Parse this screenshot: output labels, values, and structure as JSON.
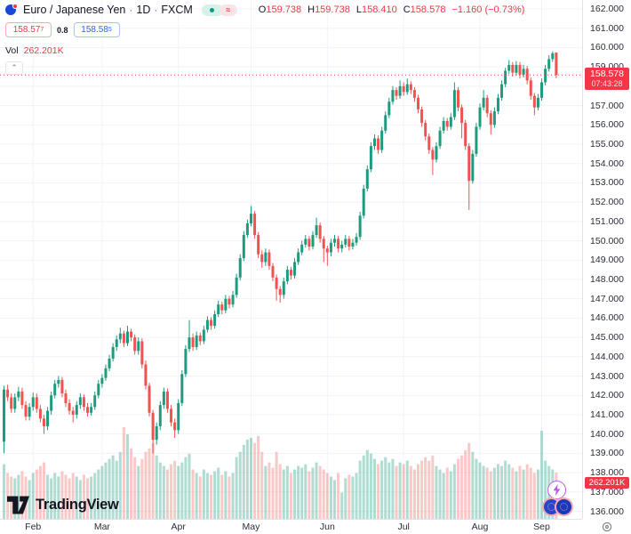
{
  "header": {
    "symbol": "Euro / Japanese Yen",
    "separator": "·",
    "interval": "1D",
    "exchange": "FXCM",
    "status_icons": [
      "market-open-dot-icon",
      "delayed-data-approx-icon"
    ],
    "status_approx_glyph": "≈",
    "ohlc": {
      "o_label": "O",
      "o": "159.738",
      "h_label": "H",
      "h": "159.738",
      "l_label": "L",
      "l": "158.410",
      "c_label": "C",
      "c": "158.578",
      "change": "−1.160 (−0.73%)"
    },
    "bid_main": "158.57",
    "bid_sup": "7",
    "spread": "0.8",
    "ask_main": "158.58",
    "ask_sup": "5",
    "vol_label": "Vol",
    "vol_value": "262.201K",
    "collapse_glyph": "⌃"
  },
  "axis": {
    "current_price": "158.578",
    "countdown": "07:43:28",
    "volume_label": "262.201K"
  },
  "footer": {
    "logo_text": "TradingView"
  },
  "colors": {
    "up": "#1e9b7e",
    "down": "#ef5350",
    "vol_up": "rgba(30,155,126,0.35)",
    "vol_down": "rgba(239,83,80,0.32)",
    "price_line": "#f23645",
    "grid": "#f0f3fa",
    "axis_text": "#2a2e39",
    "label_bg": "#f23645",
    "accent_blue": "#2962ff"
  },
  "chart_data": {
    "type": "candlestick",
    "title": "Euro / Japanese Yen · 1D · FXCM",
    "price_axis": {
      "min": 136,
      "max": 162,
      "step": 1,
      "format_decimals": 3
    },
    "last_price": 158.578,
    "months": [
      {
        "label": "Feb",
        "index": 8
      },
      {
        "label": "Mar",
        "index": 27
      },
      {
        "label": "Apr",
        "index": 48
      },
      {
        "label": "May",
        "index": 68
      },
      {
        "label": "Jun",
        "index": 89
      },
      {
        "label": "Jul",
        "index": 110
      },
      {
        "label": "Aug",
        "index": 131
      },
      {
        "label": "Sep",
        "index": 148
      }
    ],
    "candles": [
      [
        139.6,
        142.5,
        139.0,
        142.3
      ],
      [
        142.3,
        142.55,
        141.7,
        141.9
      ],
      [
        141.9,
        142.1,
        141.1,
        141.3
      ],
      [
        141.3,
        142.1,
        141.1,
        141.9
      ],
      [
        141.9,
        142.45,
        141.7,
        142.2
      ],
      [
        142.2,
        142.4,
        141.3,
        141.5
      ],
      [
        141.5,
        141.7,
        140.7,
        140.9
      ],
      [
        140.9,
        141.6,
        140.7,
        141.4
      ],
      [
        141.4,
        142.15,
        141.2,
        141.9
      ],
      [
        141.9,
        142.1,
        141.1,
        141.3
      ],
      [
        141.3,
        141.5,
        140.6,
        140.8
      ],
      [
        140.8,
        141.0,
        140.0,
        140.4
      ],
      [
        140.4,
        141.4,
        140.2,
        141.2
      ],
      [
        141.2,
        142.2,
        141.0,
        142.0
      ],
      [
        142.0,
        142.8,
        141.85,
        142.6
      ],
      [
        142.6,
        143.0,
        142.4,
        142.8
      ],
      [
        142.8,
        142.95,
        141.9,
        142.1
      ],
      [
        142.1,
        142.3,
        141.4,
        141.6
      ],
      [
        141.6,
        141.8,
        141.0,
        141.2
      ],
      [
        141.2,
        141.4,
        140.6,
        141.0
      ],
      [
        141.0,
        141.7,
        140.8,
        141.5
      ],
      [
        141.5,
        142.1,
        141.3,
        141.9
      ],
      [
        141.9,
        142.05,
        141.2,
        141.4
      ],
      [
        141.4,
        141.6,
        140.9,
        141.1
      ],
      [
        141.1,
        141.6,
        140.95,
        141.4
      ],
      [
        141.4,
        142.2,
        141.25,
        142.0
      ],
      [
        142.0,
        142.8,
        141.85,
        142.6
      ],
      [
        142.6,
        143.1,
        142.4,
        142.9
      ],
      [
        142.9,
        143.6,
        142.75,
        143.4
      ],
      [
        143.4,
        144.1,
        143.25,
        143.9
      ],
      [
        143.9,
        144.7,
        143.75,
        144.5
      ],
      [
        144.5,
        145.1,
        144.3,
        144.9
      ],
      [
        144.9,
        145.5,
        144.7,
        145.2
      ],
      [
        145.2,
        145.35,
        144.5,
        144.7
      ],
      [
        144.7,
        145.6,
        144.55,
        145.3
      ],
      [
        145.3,
        145.45,
        144.8,
        145.0
      ],
      [
        145.0,
        145.15,
        144.1,
        144.3
      ],
      [
        144.3,
        145.0,
        144.1,
        144.8
      ],
      [
        144.8,
        144.95,
        143.4,
        143.6
      ],
      [
        143.6,
        143.8,
        142.3,
        142.5
      ],
      [
        142.5,
        142.65,
        140.9,
        141.1
      ],
      [
        141.1,
        141.25,
        139.0,
        139.7
      ],
      [
        139.7,
        140.6,
        139.45,
        140.4
      ],
      [
        140.4,
        141.7,
        140.2,
        141.5
      ],
      [
        141.5,
        142.4,
        141.3,
        142.2
      ],
      [
        142.2,
        142.35,
        141.1,
        141.3
      ],
      [
        141.3,
        141.5,
        140.4,
        140.6
      ],
      [
        140.6,
        140.8,
        139.8,
        140.2
      ],
      [
        140.2,
        141.8,
        140.0,
        141.6
      ],
      [
        141.6,
        143.3,
        141.45,
        143.1
      ],
      [
        143.1,
        144.6,
        142.95,
        144.4
      ],
      [
        144.4,
        145.9,
        144.25,
        145.0
      ],
      [
        145.0,
        145.2,
        144.3,
        144.5
      ],
      [
        144.5,
        145.3,
        144.35,
        145.1
      ],
      [
        145.1,
        145.25,
        144.6,
        144.8
      ],
      [
        144.8,
        145.6,
        144.65,
        145.4
      ],
      [
        145.4,
        146.1,
        145.25,
        145.9
      ],
      [
        145.9,
        146.05,
        145.4,
        145.6
      ],
      [
        145.6,
        146.4,
        145.45,
        146.2
      ],
      [
        146.2,
        146.9,
        146.05,
        146.7
      ],
      [
        146.7,
        146.85,
        146.2,
        146.4
      ],
      [
        146.4,
        147.2,
        146.25,
        147.0
      ],
      [
        147.0,
        147.15,
        146.5,
        146.7
      ],
      [
        146.7,
        147.4,
        146.55,
        147.2
      ],
      [
        147.2,
        148.3,
        147.05,
        148.1
      ],
      [
        148.1,
        149.3,
        147.95,
        149.1
      ],
      [
        149.1,
        150.5,
        148.95,
        150.3
      ],
      [
        150.3,
        151.1,
        150.15,
        150.9
      ],
      [
        150.9,
        151.8,
        150.75,
        151.4
      ],
      [
        151.4,
        151.55,
        150.1,
        150.3
      ],
      [
        150.3,
        150.45,
        149.1,
        149.3
      ],
      [
        149.3,
        149.5,
        148.6,
        148.9
      ],
      [
        148.9,
        149.6,
        148.7,
        149.4
      ],
      [
        149.4,
        149.55,
        148.5,
        148.7
      ],
      [
        148.7,
        148.85,
        147.9,
        148.1
      ],
      [
        148.1,
        148.25,
        146.9,
        147.5
      ],
      [
        147.5,
        147.65,
        146.8,
        147.2
      ],
      [
        147.2,
        148.1,
        147.0,
        147.9
      ],
      [
        147.9,
        148.7,
        147.75,
        148.5
      ],
      [
        148.5,
        148.65,
        148.0,
        148.2
      ],
      [
        148.2,
        149.1,
        148.05,
        148.9
      ],
      [
        148.9,
        149.6,
        148.75,
        149.4
      ],
      [
        149.4,
        150.0,
        149.25,
        149.8
      ],
      [
        149.8,
        150.3,
        149.65,
        150.1
      ],
      [
        150.1,
        150.25,
        149.5,
        149.7
      ],
      [
        149.7,
        150.5,
        149.55,
        150.3
      ],
      [
        150.3,
        151.2,
        150.15,
        150.8
      ],
      [
        150.8,
        150.95,
        149.9,
        150.1
      ],
      [
        150.1,
        150.25,
        148.9,
        149.6
      ],
      [
        149.6,
        149.75,
        148.7,
        149.4
      ],
      [
        149.4,
        150.1,
        149.2,
        149.9
      ],
      [
        149.9,
        150.3,
        149.7,
        150.1
      ],
      [
        150.1,
        150.25,
        149.4,
        149.6
      ],
      [
        149.6,
        150.0,
        149.4,
        149.8
      ],
      [
        149.8,
        150.3,
        149.65,
        150.1
      ],
      [
        150.1,
        150.25,
        149.5,
        149.7
      ],
      [
        149.7,
        150.1,
        149.55,
        149.9
      ],
      [
        149.9,
        150.4,
        149.75,
        150.2
      ],
      [
        150.2,
        151.5,
        150.05,
        151.3
      ],
      [
        151.3,
        152.9,
        151.15,
        152.7
      ],
      [
        152.7,
        153.9,
        152.55,
        153.7
      ],
      [
        153.7,
        155.1,
        153.55,
        154.9
      ],
      [
        154.9,
        155.5,
        154.7,
        155.3
      ],
      [
        155.3,
        155.45,
        154.5,
        154.7
      ],
      [
        154.7,
        155.9,
        154.55,
        155.7
      ],
      [
        155.7,
        156.7,
        155.55,
        156.5
      ],
      [
        156.5,
        157.4,
        156.35,
        157.2
      ],
      [
        157.2,
        158.0,
        157.05,
        157.8
      ],
      [
        157.8,
        157.95,
        157.3,
        157.5
      ],
      [
        157.5,
        158.3,
        157.35,
        158.0
      ],
      [
        158.0,
        158.2,
        157.5,
        157.7
      ],
      [
        157.7,
        158.4,
        157.55,
        158.1
      ],
      [
        158.1,
        158.25,
        157.6,
        157.8
      ],
      [
        157.8,
        157.95,
        157.2,
        157.4
      ],
      [
        157.4,
        157.55,
        156.6,
        156.8
      ],
      [
        156.8,
        156.95,
        155.9,
        156.1
      ],
      [
        156.1,
        156.25,
        155.2,
        155.4
      ],
      [
        155.4,
        155.55,
        154.5,
        154.7
      ],
      [
        154.7,
        154.85,
        153.4,
        154.2
      ],
      [
        154.2,
        155.1,
        154.05,
        154.9
      ],
      [
        154.9,
        155.9,
        154.75,
        155.7
      ],
      [
        155.7,
        156.4,
        155.55,
        156.2
      ],
      [
        156.2,
        156.35,
        155.7,
        155.9
      ],
      [
        155.9,
        156.6,
        155.75,
        156.4
      ],
      [
        156.4,
        158.2,
        156.25,
        157.8
      ],
      [
        157.8,
        157.95,
        156.7,
        156.9
      ],
      [
        156.9,
        157.05,
        155.3,
        156.1
      ],
      [
        156.1,
        156.25,
        154.7,
        154.9
      ],
      [
        154.9,
        155.05,
        151.6,
        153.1
      ],
      [
        153.1,
        154.7,
        152.95,
        154.5
      ],
      [
        154.5,
        156.1,
        154.35,
        155.9
      ],
      [
        155.9,
        157.1,
        155.75,
        156.9
      ],
      [
        156.9,
        157.8,
        156.75,
        157.4
      ],
      [
        157.4,
        157.55,
        156.4,
        156.6
      ],
      [
        156.6,
        156.75,
        155.5,
        156.0
      ],
      [
        156.0,
        156.9,
        155.85,
        156.7
      ],
      [
        156.7,
        157.6,
        156.55,
        157.4
      ],
      [
        157.4,
        158.3,
        157.25,
        158.1
      ],
      [
        158.1,
        158.95,
        157.95,
        158.8
      ],
      [
        158.8,
        159.35,
        158.65,
        159.1
      ],
      [
        159.1,
        159.25,
        158.5,
        158.7
      ],
      [
        158.7,
        159.3,
        158.55,
        159.1
      ],
      [
        159.1,
        159.25,
        158.4,
        158.6
      ],
      [
        158.6,
        159.1,
        158.45,
        158.9
      ],
      [
        158.9,
        159.05,
        158.1,
        158.3
      ],
      [
        158.3,
        158.45,
        157.3,
        157.5
      ],
      [
        157.5,
        157.65,
        156.5,
        156.9
      ],
      [
        156.9,
        157.6,
        156.75,
        157.4
      ],
      [
        157.4,
        158.4,
        157.25,
        158.2
      ],
      [
        158.2,
        159.1,
        158.05,
        158.9
      ],
      [
        158.9,
        159.6,
        158.75,
        159.4
      ],
      [
        159.4,
        159.8,
        159.25,
        159.7
      ],
      [
        159.738,
        159.738,
        158.41,
        158.578
      ]
    ],
    "volumes": [
      310,
      260,
      240,
      230,
      250,
      270,
      240,
      220,
      260,
      280,
      300,
      320,
      250,
      230,
      260,
      240,
      270,
      250,
      230,
      260,
      240,
      220,
      250,
      230,
      240,
      260,
      280,
      300,
      320,
      340,
      360,
      330,
      380,
      520,
      480,
      400,
      350,
      300,
      340,
      380,
      400,
      430,
      360,
      320,
      300,
      280,
      310,
      330,
      300,
      320,
      350,
      370,
      280,
      260,
      240,
      280,
      260,
      250,
      270,
      290,
      250,
      270,
      240,
      260,
      350,
      380,
      420,
      450,
      460,
      430,
      470,
      380,
      300,
      320,
      290,
      380,
      310,
      280,
      300,
      260,
      280,
      300,
      290,
      310,
      270,
      290,
      320,
      300,
      280,
      260,
      240,
      220,
      260,
      150,
      230,
      250,
      240,
      260,
      330,
      360,
      390,
      370,
      340,
      310,
      330,
      350,
      320,
      340,
      300,
      320,
      310,
      330,
      300,
      280,
      310,
      330,
      350,
      330,
      360,
      300,
      280,
      260,
      290,
      270,
      310,
      340,
      360,
      390,
      430,
      380,
      340,
      320,
      300,
      290,
      270,
      290,
      310,
      300,
      330,
      310,
      290,
      270,
      300,
      280,
      310,
      290,
      260,
      280,
      500,
      330,
      300,
      280,
      262.201
    ],
    "volume_axis_max": 530,
    "legend_position": "top-left",
    "grid": true
  }
}
